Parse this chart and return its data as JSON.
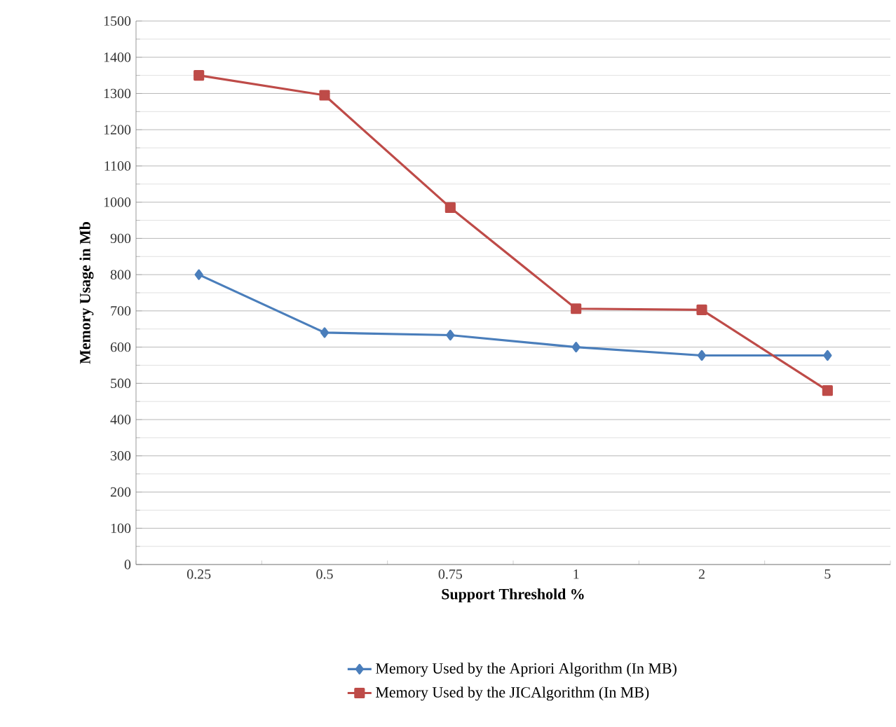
{
  "chart_data": {
    "type": "line",
    "xlabel": "Support Threshold %",
    "ylabel": "Memory Usage in Mb",
    "categories": [
      "0.25",
      "0.5",
      "0.75",
      "1",
      "2",
      "5"
    ],
    "series": [
      {
        "name": "Memory Used by the Apriori Algorithm (In MB)",
        "color": "#4a7ebb",
        "marker": "diamond",
        "values": [
          800,
          640,
          633,
          600,
          577,
          577
        ]
      },
      {
        "name": "Memory Used by the  JICAlgorithm (In MB)",
        "color": "#be4b48",
        "marker": "square",
        "values": [
          1350,
          1295,
          985,
          706,
          703,
          480
        ]
      }
    ],
    "ylim": [
      0,
      1500
    ],
    "yticks": [
      0,
      100,
      200,
      300,
      400,
      500,
      600,
      700,
      800,
      900,
      1000,
      1100,
      1200,
      1300,
      1400,
      1500
    ],
    "grid": "y",
    "legend": "bottom"
  }
}
